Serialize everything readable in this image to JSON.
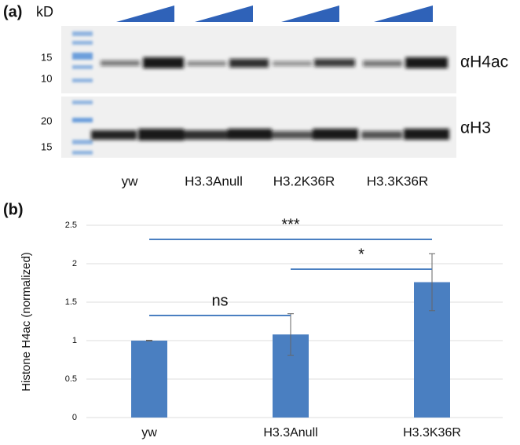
{
  "panel_a": {
    "label": "(a)",
    "unit": "kD",
    "markers_top": [
      "15",
      "10"
    ],
    "markers_bottom": [
      "20",
      "15"
    ],
    "antibodies": [
      "αH4ac",
      "αH3"
    ],
    "lanes": [
      "yw",
      "H3.3Anull",
      "H3.2K36R",
      "H3.3K36R"
    ]
  },
  "chart_data": {
    "panel_label": "(b)",
    "type": "bar",
    "ylabel": "Histone H4ac  (normalized)",
    "categories": [
      "yw",
      "H3.3Anull",
      "H3.3K36R"
    ],
    "values": [
      1,
      1.08,
      1.76
    ],
    "errors": [
      0.005,
      0.27,
      0.37
    ],
    "color": "#4a7fc1",
    "ylim": [
      0,
      2.5
    ],
    "yticks": [
      0,
      0.5,
      1,
      1.5,
      2,
      2.5
    ],
    "grid": true,
    "annotations": [
      {
        "text": "ns",
        "groups": [
          "yw",
          "H3.3Anull"
        ]
      },
      {
        "text": "*",
        "groups": [
          "H3.3Anull",
          "H3.3K36R"
        ]
      },
      {
        "text": "***",
        "groups": [
          "yw",
          "H3.3K36R"
        ]
      }
    ]
  }
}
